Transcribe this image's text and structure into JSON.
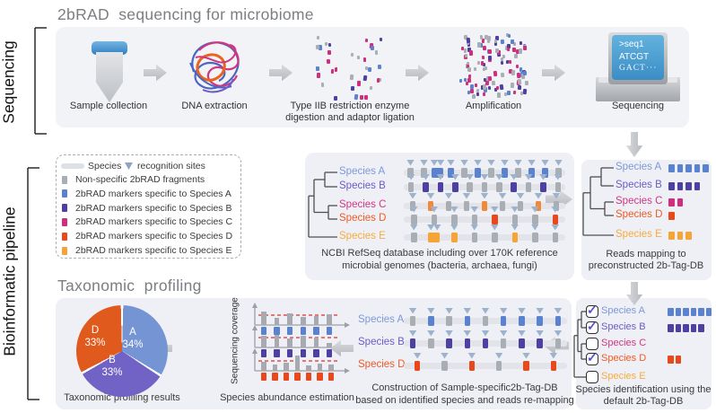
{
  "sequencing": {
    "side_label": "Sequencing",
    "title": "2bRAD  sequencing for microbiome",
    "steps": [
      {
        "label": "Sample collection"
      },
      {
        "label": "DNA extraction"
      },
      {
        "label": "Type IIB restriction enzyme",
        "label2": "digestion and adaptor ligation"
      },
      {
        "label": "Amplification"
      },
      {
        "label": "Sequencing"
      }
    ],
    "screen_lines": [
      ">seq1",
      "ATCGT",
      "GACT···"
    ]
  },
  "pipeline": {
    "side_label": "Bioinformatic pipeline",
    "legend": {
      "species_word": "Species",
      "sites_word": "recognition sites",
      "items": [
        {
          "label": "Non-specific 2bRAD fragments",
          "color": "#a9adb4"
        },
        {
          "label": "2bRAD markers specific to Species A",
          "color": "#5b82ce"
        },
        {
          "label": "2bRAD markers specific to Species B",
          "color": "#4e3fa3"
        },
        {
          "label": "2bRAD markers specific to Species C",
          "color": "#cf2d7d"
        },
        {
          "label": "2bRAD markers specific to Species D",
          "color": "#e8481c"
        },
        {
          "label": "2bRAD markers specific to Species E",
          "color": "#f6a434"
        }
      ]
    },
    "species": {
      "A": {
        "name": "Species A",
        "label_color": "#7d99d8",
        "marker_color": "#5b82ce"
      },
      "B": {
        "name": "Species B",
        "label_color": "#6b5bc8",
        "marker_color": "#4e3fa3"
      },
      "C": {
        "name": "Species C",
        "label_color": "#d23584",
        "marker_color": "#cf2d7d"
      },
      "D": {
        "name": "Species D",
        "label_color": "#f05a24",
        "marker_color": "#e8481c"
      },
      "E": {
        "name": "Species E",
        "label_color": "#f8ab40",
        "marker_color": "#f6a434"
      }
    },
    "refseq_panel": {
      "caption1": "NCBI RefSeq database including over 170K reference",
      "caption2": "microbial genomes (bacteria, archaea, fungi)",
      "rows": [
        {
          "sp": "A",
          "pattern": [
            "g",
            "g",
            "S",
            "s",
            "g",
            "s",
            "g",
            "s",
            "g",
            "s",
            "s",
            "g"
          ]
        },
        {
          "sp": "B",
          "pattern": [
            "g",
            "s",
            "s",
            "s",
            "g",
            "g",
            "g",
            "s",
            "g",
            "s",
            "g"
          ]
        },
        {
          "sp": "C",
          "pattern": [
            "g",
            "s",
            "g",
            "g",
            "s",
            "g",
            "g",
            "s",
            "g"
          ],
          "site_color": "#f08a3a"
        },
        {
          "sp": "D",
          "pattern": [
            "g",
            "g",
            "g",
            "g",
            "s",
            "g",
            "g",
            "s"
          ]
        },
        {
          "sp": "E",
          "pattern": [
            "g",
            "S",
            "s",
            "g",
            "g",
            "s",
            "g",
            "g"
          ]
        }
      ]
    },
    "mapping_panel": {
      "caption1": "Reads mapping to",
      "caption2": "preconstructed 2b-Tag-DB",
      "rows": [
        {
          "sp": "A",
          "reads": 5
        },
        {
          "sp": "B",
          "reads": 4
        },
        {
          "sp": "C",
          "reads": 2
        },
        {
          "sp": "D",
          "reads": 1
        },
        {
          "sp": "E",
          "reads": 3
        }
      ]
    },
    "identification_panel": {
      "caption1": "Species identification using the",
      "caption2": "default 2b-Tag-DB",
      "rows": [
        {
          "sp": "A",
          "checked": true,
          "reads": 6
        },
        {
          "sp": "B",
          "checked": true,
          "reads": 5
        },
        {
          "sp": "C",
          "checked": false,
          "reads": 0
        },
        {
          "sp": "D",
          "checked": true,
          "reads": 2
        },
        {
          "sp": "E",
          "checked": false,
          "reads": 0
        }
      ]
    },
    "construction_panel": {
      "caption1": "Construction of Sample-specific2b-Tag-DB",
      "caption2": "based on identified species and reads re-mapping",
      "rows": [
        {
          "sp": "A",
          "pattern": [
            "g",
            "s",
            "g",
            "s",
            "g",
            "s",
            "s",
            "s",
            "s"
          ]
        },
        {
          "sp": "B",
          "pattern": [
            "s",
            "g",
            "s",
            "s",
            "s",
            "g",
            "s",
            "s",
            "g"
          ]
        },
        {
          "sp": "D",
          "pattern": [
            "s",
            "g",
            "s",
            "g",
            "s",
            "s"
          ]
        }
      ]
    },
    "abundance_panel": {
      "axis_label": "Sequencing coverage",
      "caption": "Species abundance estimation",
      "plots": [
        {
          "sp": "A",
          "bars": [
            15,
            8,
            13,
            9,
            10,
            12
          ]
        },
        {
          "sp": "B",
          "bars": [
            13,
            14,
            10,
            13,
            11,
            5
          ]
        },
        {
          "sp": "D",
          "bars": [
            10,
            7,
            9,
            17,
            6,
            8,
            7
          ]
        }
      ]
    },
    "profiling": {
      "heading": "Taxonomic  profiling",
      "caption": "Taxonomic profiling results"
    }
  },
  "chart_data": {
    "type": "pie",
    "title": "Taxonomic profiling results",
    "labels": [
      "A",
      "B",
      "D"
    ],
    "values": [
      34,
      33,
      33
    ],
    "value_labels": [
      "34%",
      "33%",
      "33%"
    ],
    "colors": [
      "#7494d3",
      "#7163c5",
      "#e05a1e"
    ],
    "legend_position": "none"
  }
}
